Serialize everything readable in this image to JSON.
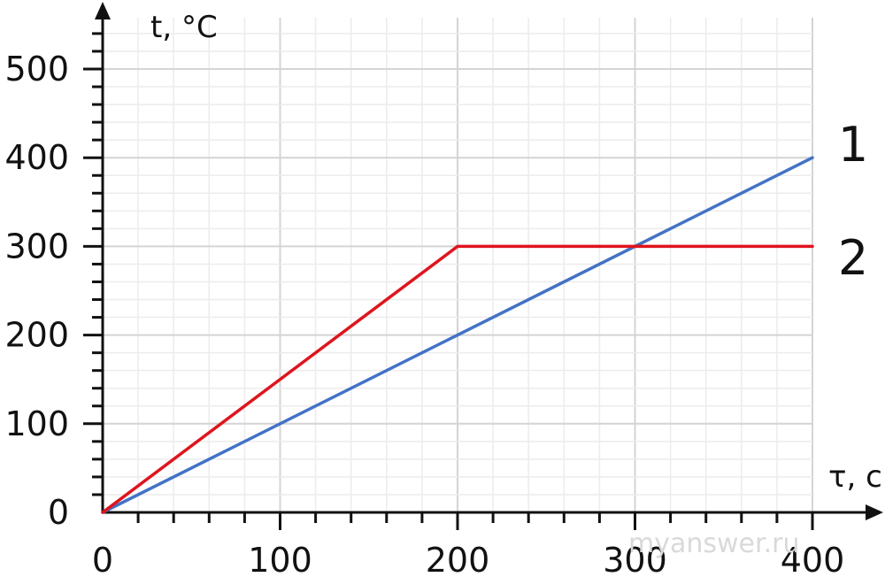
{
  "chart_data": {
    "type": "line",
    "xlabel": "τ, c",
    "ylabel": "t, °C",
    "xlim": [
      0,
      400
    ],
    "ylim": [
      0,
      500
    ],
    "x_ticks": [
      0,
      100,
      200,
      300,
      400
    ],
    "y_ticks": [
      0,
      100,
      200,
      300,
      400,
      500
    ],
    "grid": true,
    "series": [
      {
        "name": "1",
        "color": "#4472c4",
        "points": [
          [
            0,
            0
          ],
          [
            400,
            400
          ]
        ]
      },
      {
        "name": "2",
        "color": "#e0141e",
        "points": [
          [
            0,
            0
          ],
          [
            200,
            300
          ],
          [
            400,
            300
          ]
        ]
      }
    ]
  },
  "watermark": "myanswer.ru"
}
